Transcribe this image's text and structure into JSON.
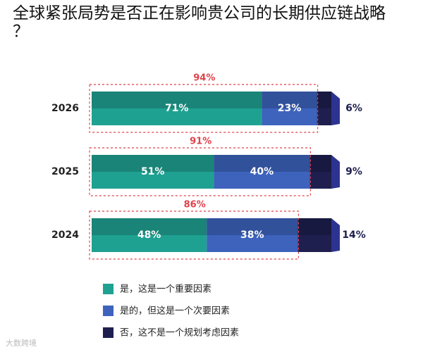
{
  "chart_data": {
    "type": "stacked-bar-horizontal",
    "title": "全球紧张局势是否正在影响贵公司的长期供应链战略？",
    "categories": [
      "2026",
      "2025",
      "2024"
    ],
    "series": [
      {
        "name": "是，这是一个重要因素",
        "color": "#1fa192",
        "values": [
          71,
          51,
          48
        ],
        "value_labels": [
          "71%",
          "51%",
          "48%"
        ]
      },
      {
        "name": "是的，但这是一个次要因素",
        "color": "#3d63bd",
        "values": [
          23,
          40,
          38
        ],
        "value_labels": [
          "23%",
          "40%",
          "38%"
        ]
      },
      {
        "name": "否，这不是一个规划考虑因素",
        "color": "#1e1f4f",
        "values": [
          6,
          9,
          14
        ],
        "value_labels": [
          "6%",
          "9%",
          "14%"
        ]
      }
    ],
    "totals": {
      "color": "#e0424b",
      "values": [
        94,
        91,
        86
      ],
      "value_labels": [
        "94%",
        "91%",
        "86%"
      ]
    },
    "watermark": "大数跨境"
  }
}
